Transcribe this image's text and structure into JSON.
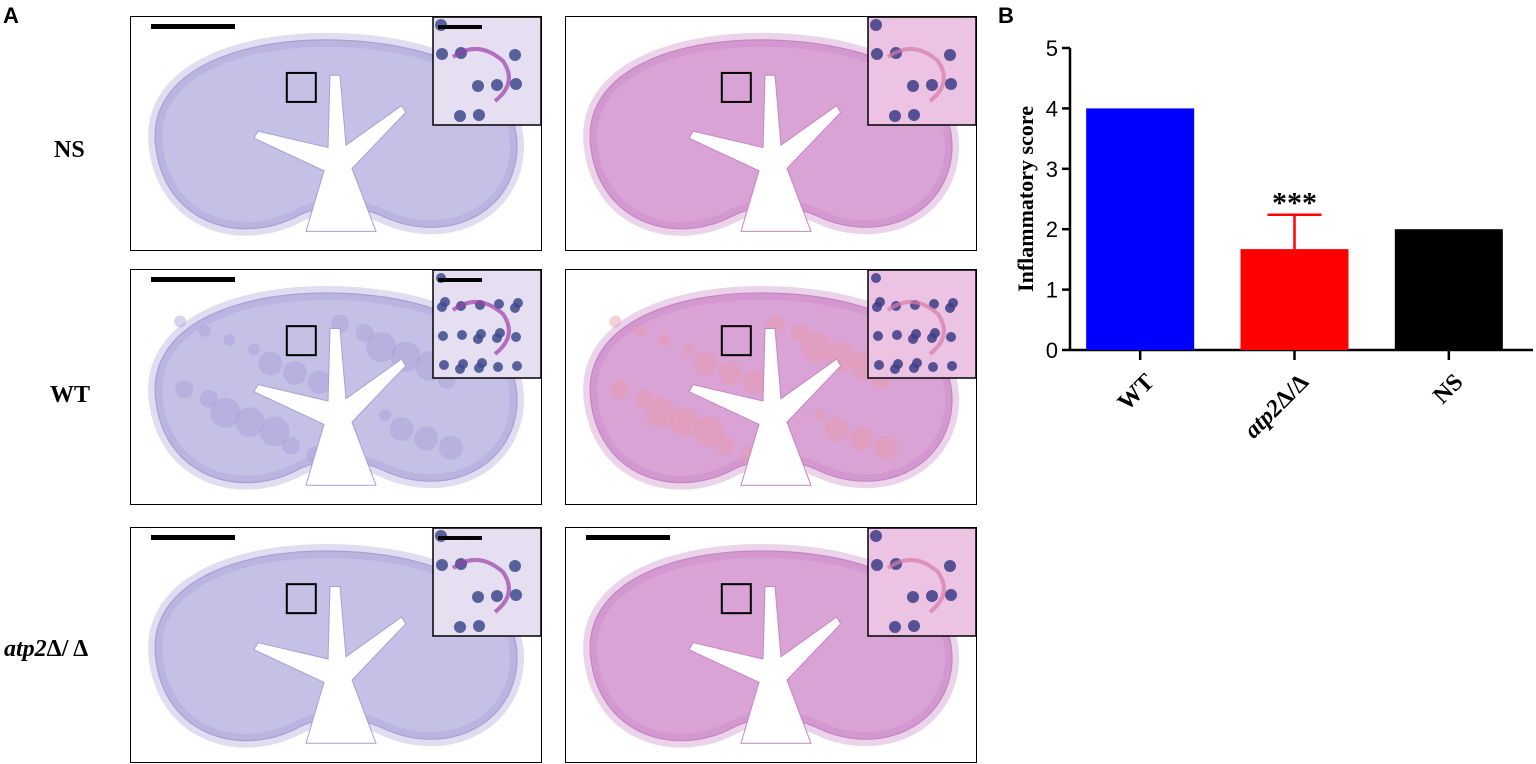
{
  "figure": {
    "panel_a_letter": "A",
    "panel_b_letter": "B",
    "rows": [
      {
        "label": "NS"
      },
      {
        "label": "WT"
      },
      {
        "label_italic": "atp2",
        "label_rest": "Δ/ Δ"
      }
    ],
    "stains": {
      "pas": {
        "tissue": "#c5c0e6",
        "dense": "#a99fd6",
        "inset_bg": "#e6dff2",
        "inset_nuclei": "#3c4a8c",
        "inset_accent": "#9a3fa6"
      },
      "he": {
        "tissue": "#d9a3d6",
        "dense": "#c784c4",
        "inset_bg": "#ecc3e3",
        "inset_nuclei": "#3c3c86",
        "inset_accent": "#d67aa8"
      },
      "he_inflamed_tint": "#e89aa8"
    }
  },
  "chart_data": {
    "type": "bar",
    "categories": [
      "WT",
      "atp2Δ/Δ",
      "NS"
    ],
    "values": [
      4,
      1.67,
      2
    ],
    "error_up": [
      0,
      0.57,
      0
    ],
    "colors": [
      "#0000ff",
      "#ff0000",
      "#000000"
    ],
    "ylabel": "Inflammatory score",
    "ylim": [
      0,
      5
    ],
    "yticks": [
      0,
      1,
      2,
      3,
      4,
      5
    ],
    "annotation": {
      "category_index": 1,
      "text": "***"
    }
  }
}
